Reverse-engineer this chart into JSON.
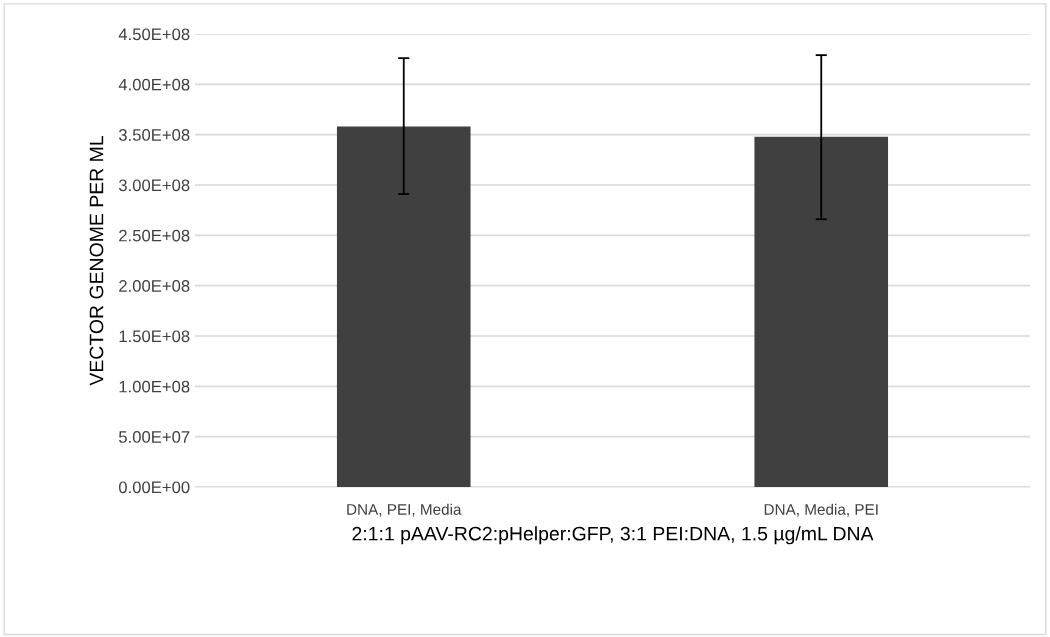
{
  "chart_data": {
    "type": "bar",
    "xlabel": "2:1:1 pAAV-RC2:pHelper:GFP, 3:1 PEI:DNA, 1.5 µg/mL DNA",
    "ylabel": "VECTOR GENOME PER ML",
    "categories": [
      "DNA, PEI, Media",
      "DNA, Media, PEI"
    ],
    "values": [
      358000000,
      348000000
    ],
    "errors": [
      [
        291000000,
        426000000
      ],
      [
        266000000,
        429000000
      ]
    ],
    "color": "#404040",
    "ylim": [
      0,
      450000000
    ],
    "yticks": [
      {
        "value": 0,
        "label": "0.00E+00"
      },
      {
        "value": 50000000,
        "label": "5.00E+07"
      },
      {
        "value": 100000000,
        "label": "1.00E+08"
      },
      {
        "value": 150000000,
        "label": "1.50E+08"
      },
      {
        "value": 200000000,
        "label": "2.00E+08"
      },
      {
        "value": 250000000,
        "label": "2.50E+08"
      },
      {
        "value": 300000000,
        "label": "3.00E+08"
      },
      {
        "value": 350000000,
        "label": "3.50E+08"
      },
      {
        "value": 400000000,
        "label": "4.00E+08"
      },
      {
        "value": 450000000,
        "label": "4.50E+08"
      }
    ],
    "grid": "y"
  }
}
